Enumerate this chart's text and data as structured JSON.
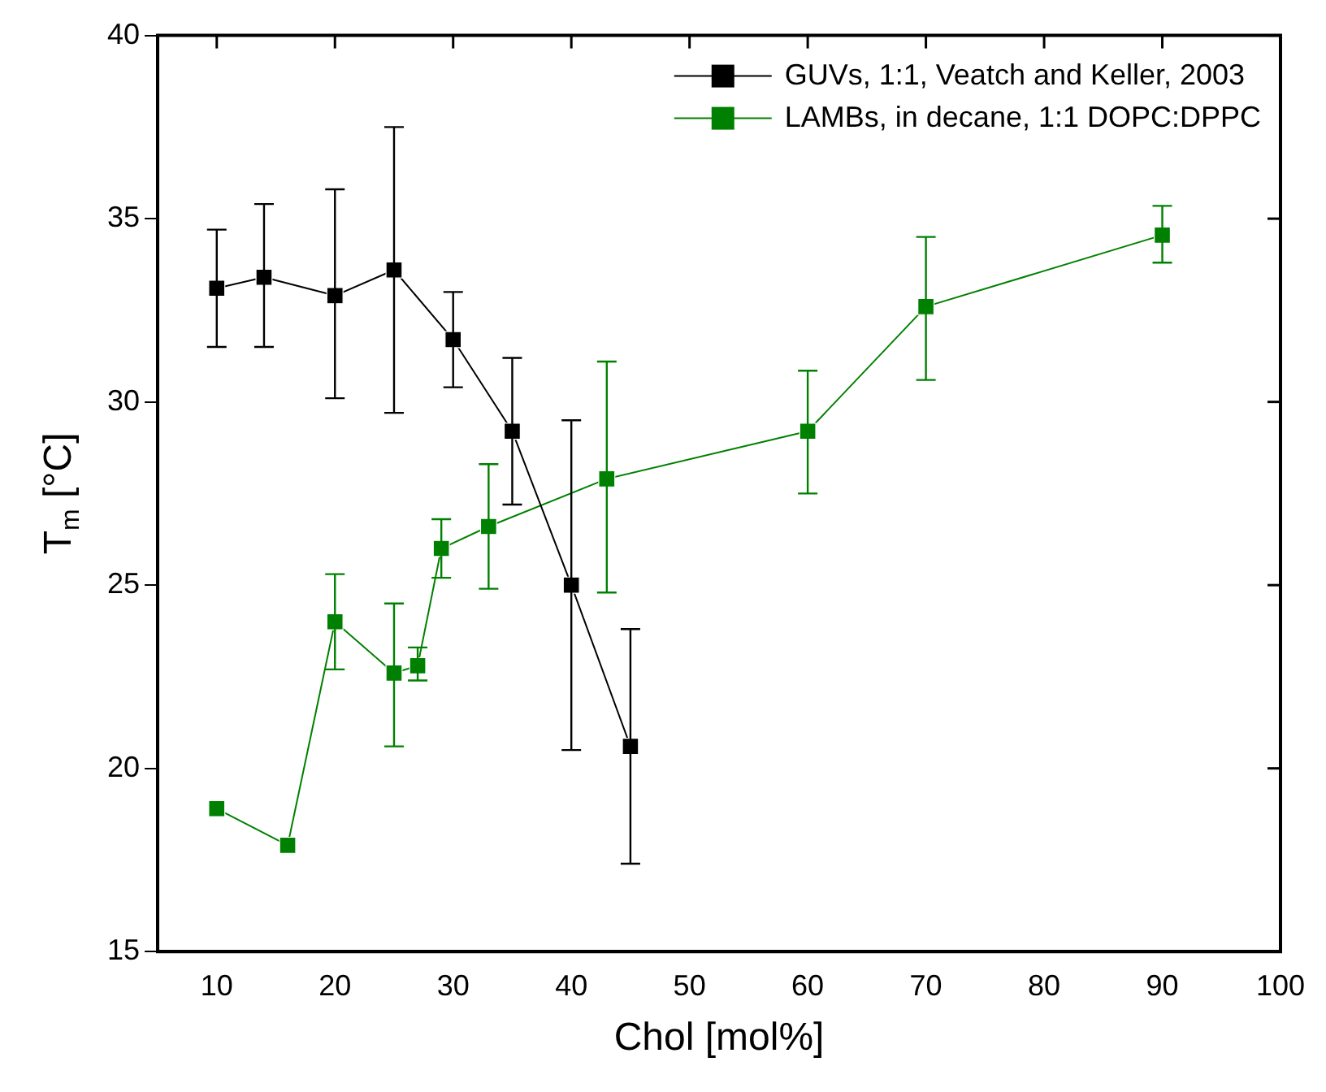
{
  "chart_data": {
    "type": "line",
    "xlabel": "Chol [mol%]",
    "ylabel": "T$_{m}$ [°C]",
    "xlim": [
      5,
      100
    ],
    "xticks": [
      10,
      20,
      30,
      40,
      50,
      60,
      70,
      80,
      90,
      100
    ],
    "ylim": [
      15,
      40
    ],
    "yticks": [
      15,
      20,
      25,
      30,
      35,
      40
    ],
    "grid": false,
    "legend": "top right",
    "marker": "square",
    "line_style": "solid",
    "series": [
      {
        "name": "GUVs, 1:1, Veatch and Keller, 2003",
        "color": "#000000",
        "x": [
          10,
          14,
          20,
          25,
          30,
          35,
          40,
          45
        ],
        "values": [
          33.1,
          33.4,
          32.9,
          33.6,
          31.7,
          29.2,
          25.0,
          20.6
        ],
        "errors": [
          [
            31.5,
            34.7
          ],
          [
            31.5,
            35.4
          ],
          [
            30.1,
            35.8
          ],
          [
            29.7,
            37.5
          ],
          [
            30.4,
            33.0
          ],
          [
            27.2,
            31.2
          ],
          [
            20.5,
            29.5
          ],
          [
            17.4,
            23.8
          ]
        ]
      },
      {
        "name": "LAMBs, in decane, 1:1 DOPC:DPPC",
        "color": "#008000",
        "x": [
          10,
          16,
          20,
          25,
          27,
          29,
          33,
          43,
          60,
          70,
          90
        ],
        "values": [
          18.9,
          17.9,
          24.0,
          22.6,
          22.8,
          26.0,
          26.6,
          27.9,
          29.2,
          32.6,
          34.55
        ],
        "errors": [
          null,
          null,
          [
            22.7,
            25.3
          ],
          [
            20.6,
            24.5
          ],
          [
            22.4,
            23.3
          ],
          [
            25.2,
            26.8
          ],
          [
            24.9,
            28.3
          ],
          [
            24.8,
            31.1
          ],
          [
            27.5,
            30.85
          ],
          [
            30.6,
            34.5
          ],
          [
            33.8,
            35.35
          ]
        ]
      }
    ]
  }
}
